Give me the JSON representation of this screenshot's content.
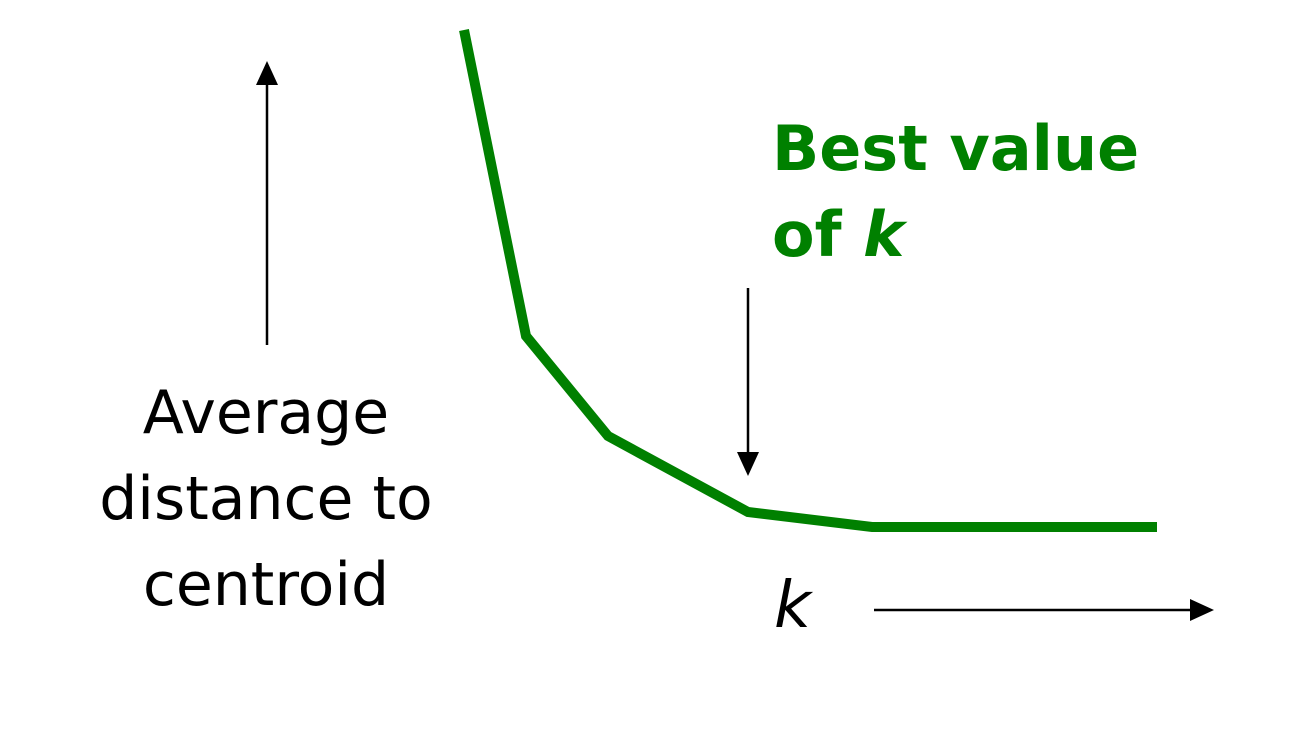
{
  "diagram": {
    "y_axis_label_lines": [
      "Average",
      "distance to",
      "centroid"
    ],
    "x_axis_label": "k",
    "annotation": {
      "line1": "Best value",
      "line2_prefix": "of ",
      "line2_var": "k"
    },
    "colors": {
      "curve": "#008000",
      "annotation": "#008000",
      "arrows": "#000000",
      "text": "#000000"
    }
  }
}
